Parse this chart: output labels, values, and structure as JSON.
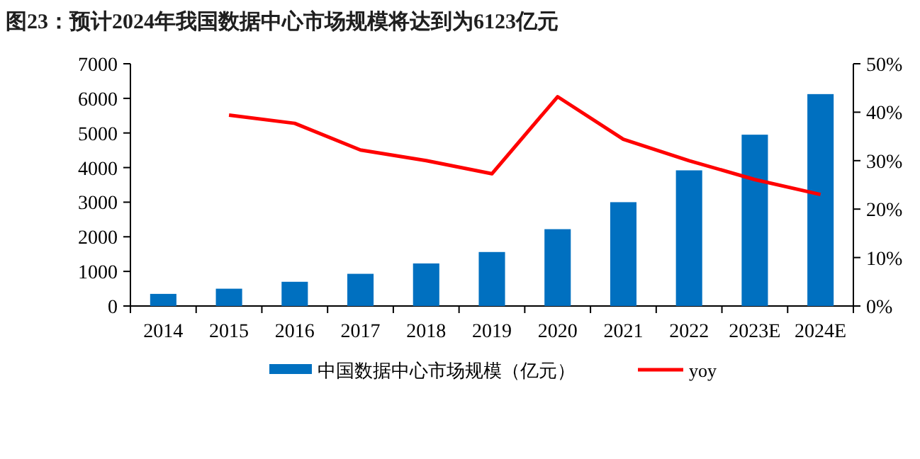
{
  "chart_data": {
    "type": "bar",
    "title": "图23：预计2024年我国数据中心市场规模将达到为6123亿元",
    "categories": [
      "2014",
      "2015",
      "2016",
      "2017",
      "2018",
      "2019",
      "2020",
      "2021",
      "2022",
      "2023E",
      "2024E"
    ],
    "series": [
      {
        "name": "中国数据中心市场规模（亿元）",
        "color": "#0070c0",
        "values": [
          350,
          500,
          700,
          930,
          1230,
          1560,
          2220,
          3000,
          3920,
          4950,
          6123
        ]
      },
      {
        "name": "yoy",
        "type": "line",
        "axis": "y2",
        "color": "#ff0000",
        "values": [
          null,
          39.4,
          37.7,
          32.2,
          30.0,
          27.3,
          43.2,
          34.4,
          30.0,
          26.1,
          23.0
        ]
      }
    ],
    "ylim": [
      0,
      7000
    ],
    "yticks": [
      0,
      1000,
      2000,
      3000,
      4000,
      5000,
      6000,
      7000
    ],
    "y2lim": [
      0,
      50
    ],
    "y2ticks": [
      {
        "value": 0,
        "label": "0%"
      },
      {
        "value": 10,
        "label": "10%"
      },
      {
        "value": 20,
        "label": "20%"
      },
      {
        "value": 30,
        "label": "30%"
      },
      {
        "value": 40,
        "label": "40%"
      },
      {
        "value": 50,
        "label": "50%"
      }
    ],
    "grid": false,
    "legend": "bottom",
    "marker": "none",
    "line_style": "solid"
  }
}
